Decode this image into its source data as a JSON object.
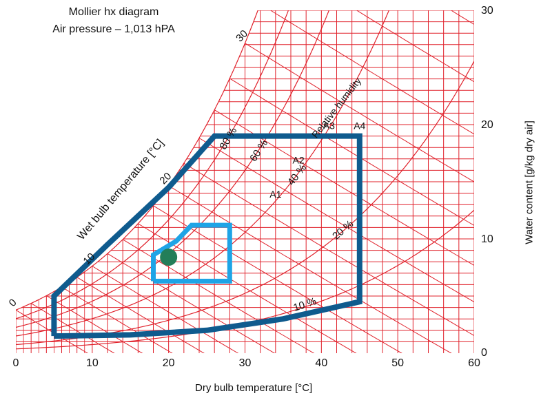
{
  "chart_data": {
    "type": "psychrometric",
    "title": "Mollier hx diagram",
    "subtitle": "Air pressure – 1,013 hPA",
    "xlabel": "Dry bulb temperature [°C]",
    "ylabel": "Water content [g/kg dry air]",
    "wetbulb_label": "Wet bulb temperature [°C]",
    "rh_label": "Relative humidity",
    "xlim": [
      0,
      60
    ],
    "ylim": [
      0,
      30
    ],
    "x_ticks": [
      "0",
      "10",
      "20",
      "30",
      "40",
      "50",
      "60"
    ],
    "y_ticks": [
      "0",
      "10",
      "20",
      "30"
    ],
    "x_tick_values": [
      0,
      10,
      20,
      30,
      40,
      50,
      60
    ],
    "y_tick_values": [
      0,
      10,
      20,
      30
    ],
    "grid_color": "#e0202a",
    "rh_curves": [
      {
        "label": "10 %",
        "rh": 10
      },
      {
        "label": "20 %",
        "rh": 20
      },
      {
        "label": "40 %",
        "rh": 40
      },
      {
        "label": "60 %",
        "rh": 60
      },
      {
        "label": "80 %",
        "rh": 80
      }
    ],
    "wetbulb_marks": [
      {
        "label": "0",
        "t": 0
      },
      {
        "label": "10",
        "t": 10
      },
      {
        "label": "20",
        "t": 20
      },
      {
        "label": "30",
        "t": 30
      }
    ],
    "zone_labels": [
      {
        "label": "A1",
        "t": 34,
        "w": 13
      },
      {
        "label": "A2",
        "t": 37,
        "w": 16
      },
      {
        "label": "A3",
        "t": 41,
        "w": 19
      },
      {
        "label": "A4",
        "t": 45,
        "w": 19
      }
    ],
    "series": [
      {
        "name": "",
        "color": "#0f5b8e",
        "points": [
          [
            5,
            1.5
          ],
          [
            5,
            5
          ],
          [
            12,
            9.5
          ],
          [
            20,
            14.5
          ],
          [
            24,
            17.5
          ],
          [
            26,
            19
          ],
          [
            45,
            19
          ],
          [
            45,
            4.5
          ],
          [
            35,
            3
          ],
          [
            25,
            2
          ],
          [
            15,
            1.6
          ],
          [
            5,
            1.5
          ]
        ]
      },
      {
        "name": "",
        "color": "#1ea4e6",
        "points": [
          [
            18,
            6.3
          ],
          [
            18,
            8.6
          ],
          [
            21,
            9.8
          ],
          [
            23,
            11.2
          ],
          [
            28,
            11.2
          ],
          [
            28,
            6.3
          ],
          [
            18,
            6.3
          ]
        ]
      }
    ],
    "points": [
      {
        "name": "",
        "color": "#237e59",
        "x": 20,
        "y": 8.4
      }
    ]
  }
}
